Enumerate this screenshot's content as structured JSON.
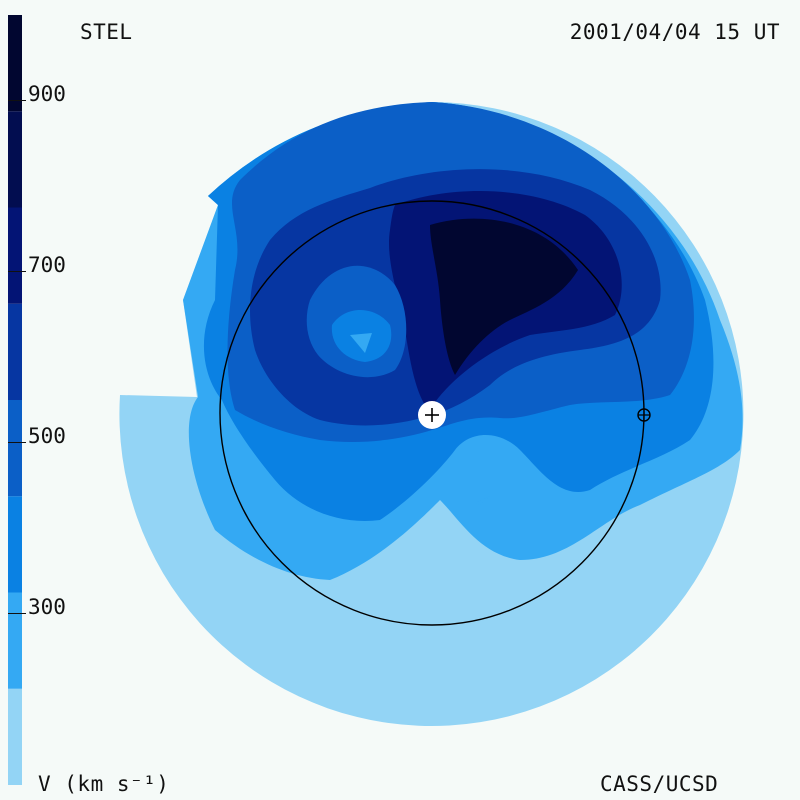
{
  "labels": {
    "observatory": "STEL",
    "datetime": "2001/04/04 15 UT",
    "quantity": "V (km s⁻¹)",
    "credit": "CASS/UCSD"
  },
  "colorbar": {
    "ticks": [
      "900",
      "700",
      "500",
      "300"
    ],
    "bands": [
      {
        "from": 200,
        "to": 300,
        "color": "#93d4f5"
      },
      {
        "from": 300,
        "to": 400,
        "color": "#34a9f3"
      },
      {
        "from": 400,
        "to": 500,
        "color": "#0a81e3"
      },
      {
        "from": 500,
        "to": 600,
        "color": "#0b5fc7"
      },
      {
        "from": 600,
        "to": 700,
        "color": "#0636a2"
      },
      {
        "from": 700,
        "to": 800,
        "color": "#031475"
      },
      {
        "from": 800,
        "to": 900,
        "color": "#020d50"
      },
      {
        "from": 900,
        "to": 1000,
        "color": "#010630"
      }
    ]
  },
  "markers": {
    "sun_icon": "sun-plus-icon",
    "earth_icon": "earth-symbol-icon"
  }
}
